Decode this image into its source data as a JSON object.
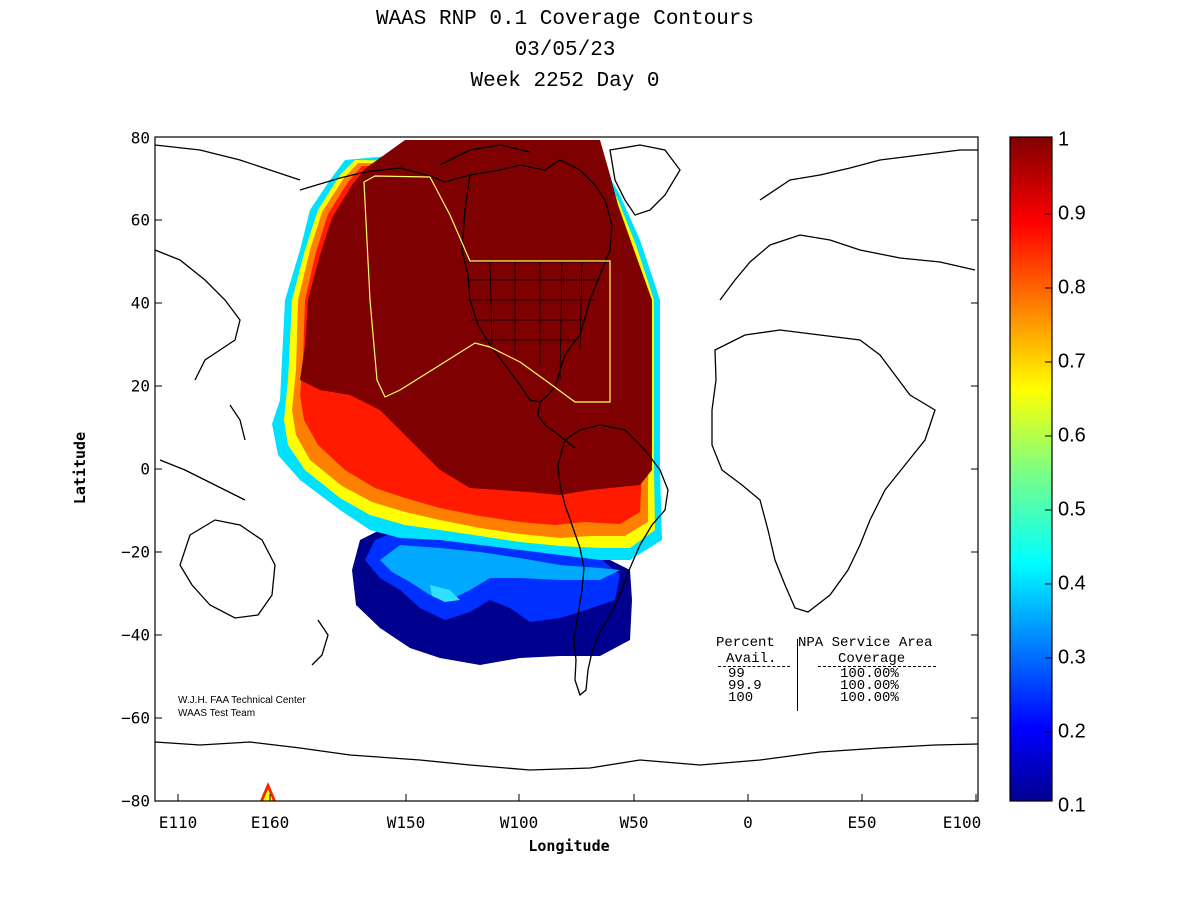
{
  "title": {
    "line1": "WAAS RNP 0.1 Coverage Contours",
    "line2": "03/05/23",
    "line3": "Week 2252 Day 0"
  },
  "axes": {
    "xlabel": "Longitude",
    "ylabel": "Latitude",
    "yticks": [
      "80",
      "60",
      "40",
      "20",
      "0",
      "−20",
      "−40",
      "−60",
      "−80"
    ],
    "xticks": [
      "E110",
      "E160",
      "W150",
      "W100",
      "W50",
      "0",
      "E50",
      "E100"
    ]
  },
  "colorbar": {
    "ticks": [
      "1",
      "0.9",
      "0.8",
      "0.7",
      "0.6",
      "0.5",
      "0.4",
      "0.3",
      "0.2",
      "0.1"
    ],
    "range": [
      0.1,
      1
    ],
    "colormap": "jet"
  },
  "credits": {
    "line1": "W.J.H. FAA Technical Center",
    "line2": "WAAS Test Team"
  },
  "legend_table": {
    "header_col1_line1": "Percent",
    "header_col1_line2": "Avail.",
    "header_col2_line1": "NPA Service Area",
    "header_col2_line2": "Coverage",
    "rows": [
      {
        "avail": "99",
        "coverage": "100.00%"
      },
      {
        "avail": "99.9",
        "coverage": "100.00%"
      },
      {
        "avail": "100",
        "coverage": "100.00%"
      }
    ]
  },
  "colors": {
    "coverage_max": "#7f0000",
    "coverage_min": "#00008f",
    "service_area_outline": "#ffff66",
    "coastlines": "#000000"
  }
}
